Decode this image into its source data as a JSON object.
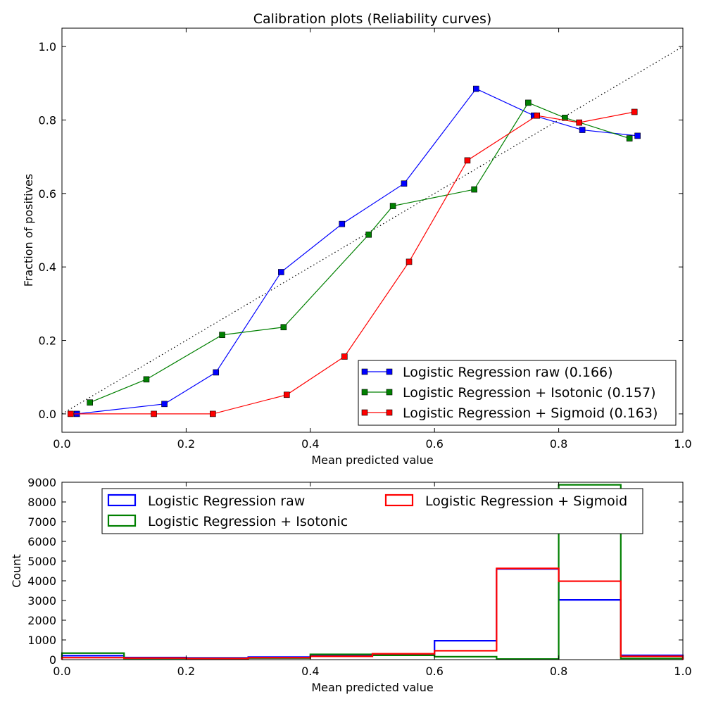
{
  "colors": {
    "raw": "#0000ff",
    "isotonic": "#008000",
    "sigmoid": "#ff0000",
    "diagonal": "#000000"
  },
  "chart_data": [
    {
      "type": "line",
      "title": "Calibration plots  (Reliability curves)",
      "xlabel": "Mean predicted value",
      "ylabel": "Fraction of positives",
      "xlim": [
        0.0,
        1.0
      ],
      "ylim": [
        -0.05,
        1.05
      ],
      "xticks": [
        "0.0",
        "0.2",
        "0.4",
        "0.6",
        "0.8",
        "1.0"
      ],
      "yticks": [
        "0.0",
        "0.2",
        "0.4",
        "0.6",
        "0.8",
        "1.0"
      ],
      "grid": false,
      "legend_position": "lower-right",
      "reference_line": {
        "x": [
          0,
          1
        ],
        "y": [
          0,
          1
        ],
        "style": "dotted"
      },
      "series": [
        {
          "name": "Logistic Regression raw (0.166)",
          "color": "#0000ff",
          "x": [
            0.024,
            0.165,
            0.248,
            0.353,
            0.451,
            0.551,
            0.667,
            0.76,
            0.838,
            0.927
          ],
          "y": [
            0.0,
            0.027,
            0.113,
            0.386,
            0.517,
            0.627,
            0.885,
            0.812,
            0.773,
            0.757
          ]
        },
        {
          "name": "Logistic Regression + Isotonic (0.157)",
          "color": "#008000",
          "x": [
            0.045,
            0.136,
            0.258,
            0.357,
            0.494,
            0.533,
            0.664,
            0.751,
            0.81,
            0.914
          ],
          "y": [
            0.031,
            0.094,
            0.215,
            0.236,
            0.488,
            0.566,
            0.611,
            0.847,
            0.806,
            0.75
          ]
        },
        {
          "name": "Logistic Regression + Sigmoid (0.163)",
          "color": "#ff0000",
          "x": [
            0.014,
            0.148,
            0.243,
            0.362,
            0.455,
            0.559,
            0.653,
            0.765,
            0.833,
            0.922
          ],
          "y": [
            0.0,
            0.0,
            0.0,
            0.052,
            0.156,
            0.414,
            0.69,
            0.812,
            0.793,
            0.822
          ]
        }
      ]
    },
    {
      "type": "histogram",
      "xlabel": "Mean predicted value",
      "ylabel": "Count",
      "xlim": [
        0.0,
        1.0
      ],
      "ylim": [
        0,
        9000
      ],
      "xticks": [
        "0.0",
        "0.2",
        "0.4",
        "0.6",
        "0.8",
        "1.0"
      ],
      "yticks": [
        "0",
        "1000",
        "2000",
        "3000",
        "4000",
        "5000",
        "6000",
        "7000",
        "8000",
        "9000"
      ],
      "grid": false,
      "legend_position": "upper-center",
      "bin_edges": [
        0.0,
        0.1,
        0.2,
        0.3,
        0.4,
        0.5,
        0.6,
        0.7,
        0.8,
        0.9,
        1.0
      ],
      "series": [
        {
          "name": "Logistic Regression raw",
          "color": "#0000ff",
          "values": [
            200,
            110,
            90,
            130,
            200,
            250,
            960,
            4600,
            3030,
            220
          ]
        },
        {
          "name": "Logistic Regression + Isotonic",
          "color": "#008000",
          "values": [
            330,
            60,
            60,
            80,
            270,
            220,
            150,
            30,
            8870,
            60
          ]
        },
        {
          "name": "Logistic Regression + Sigmoid",
          "color": "#ff0000",
          "values": [
            100,
            80,
            60,
            100,
            170,
            300,
            450,
            4630,
            3980,
            170
          ]
        }
      ]
    }
  ]
}
